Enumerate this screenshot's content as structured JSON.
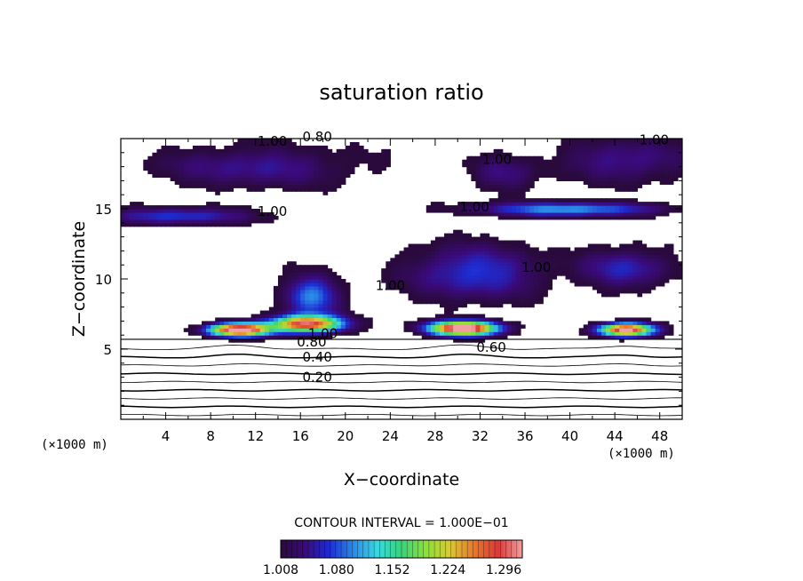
{
  "chart_data": {
    "type": "heatmap",
    "title": "saturation ratio",
    "xlabel": "X−coordinate",
    "ylabel": "Z−coordinate",
    "x_unit": "(×1000 m)",
    "y_unit": "(×1000 m)",
    "xlim": [
      0,
      50
    ],
    "ylim": [
      0,
      20
    ],
    "x_ticks": [
      4,
      8,
      12,
      16,
      20,
      24,
      28,
      32,
      36,
      40,
      44,
      48
    ],
    "y_ticks": [
      5,
      10,
      15
    ],
    "contour_interval_label": "CONTOUR INTERVAL = 1.000E−01",
    "contour_labels": [
      {
        "text": "1.00",
        "x": 13.5,
        "z": 19.5
      },
      {
        "text": "0.80",
        "x": 17.5,
        "z": 19.8
      },
      {
        "text": "1.00",
        "x": 33.5,
        "z": 18.2
      },
      {
        "text": "1.00",
        "x": 47.5,
        "z": 19.6
      },
      {
        "text": "1.00",
        "x": 13.5,
        "z": 14.5
      },
      {
        "text": "1.00",
        "x": 31.5,
        "z": 14.8
      },
      {
        "text": "1.00",
        "x": 37.0,
        "z": 10.5
      },
      {
        "text": "1.00",
        "x": 24.0,
        "z": 9.2
      },
      {
        "text": "1.00",
        "x": 18.0,
        "z": 5.8
      },
      {
        "text": "0.80",
        "x": 17.0,
        "z": 5.2
      },
      {
        "text": "0.60",
        "x": 33.0,
        "z": 4.8
      },
      {
        "text": "0.40",
        "x": 17.5,
        "z": 4.1
      },
      {
        "text": "0.20",
        "x": 17.5,
        "z": 2.7
      }
    ],
    "colorbar": {
      "min": 1.008,
      "max": 1.32,
      "tick_labels": [
        "1.008",
        "1.080",
        "1.152",
        "1.224",
        "1.296"
      ],
      "colors": [
        "#2a0a3c",
        "#3a0a7a",
        "#1e2bd0",
        "#2a8ae8",
        "#3ad8e0",
        "#3ad27a",
        "#8ae03a",
        "#d8c83a",
        "#e8782a",
        "#d83a3a",
        "#f0a0a0"
      ]
    }
  }
}
